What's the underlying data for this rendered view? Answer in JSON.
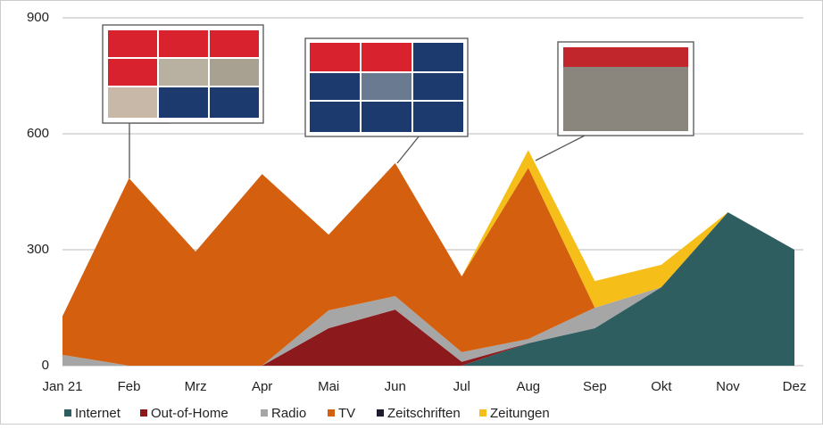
{
  "chart_data": {
    "type": "stacked-area",
    "categories": [
      "Jan 21",
      "Feb",
      "Mrz",
      "Apr",
      "Mai",
      "Jun",
      "Jul",
      "Aug",
      "Sep",
      "Okt",
      "Nov",
      "Dez"
    ],
    "series": [
      {
        "name": "Internet",
        "color": "#2f5e60",
        "values": [
          0,
          0,
          0,
          0,
          0,
          0,
          0,
          58,
          97,
          203,
          397,
          300
        ]
      },
      {
        "name": "Out-of-Home",
        "color": "#8c1a1c",
        "values": [
          0,
          0,
          0,
          0,
          97,
          145,
          10,
          0,
          0,
          0,
          0,
          0
        ]
      },
      {
        "name": "Radio",
        "color": "#a6a6a6",
        "values": [
          28,
          0,
          0,
          0,
          46,
          35,
          25,
          11,
          53,
          0,
          0,
          0
        ]
      },
      {
        "name": "TV",
        "color": "#d4600f",
        "values": [
          100,
          485,
          295,
          496,
          196,
          344,
          196,
          443,
          0,
          0,
          0,
          0
        ]
      },
      {
        "name": "Zeitschriften",
        "color": "#1c1c2e",
        "values": [
          0,
          0,
          0,
          0,
          0,
          0,
          0,
          0,
          0,
          0,
          0,
          0
        ]
      },
      {
        "name": "Zeitungen",
        "color": "#f5be18",
        "values": [
          0,
          0,
          0,
          0,
          0,
          0,
          0,
          46,
          69,
          58,
          0,
          0
        ]
      }
    ],
    "ylim": [
      0,
      900
    ],
    "yticks": [
      0,
      300,
      600,
      900
    ],
    "grid": true
  }
}
